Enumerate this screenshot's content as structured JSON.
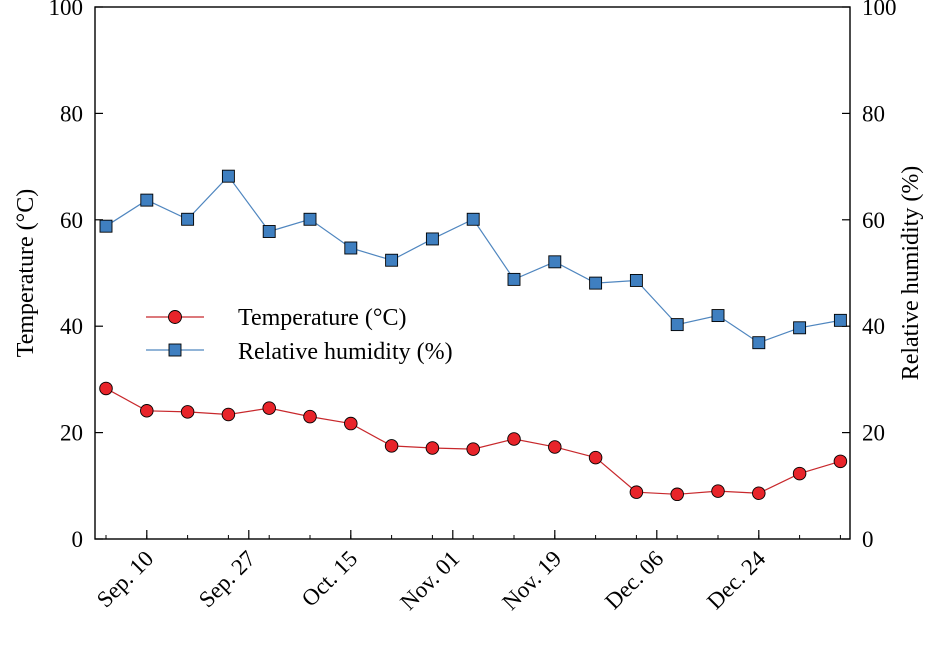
{
  "chart_data": {
    "type": "line",
    "x_tick_labels": [
      "Sep. 10",
      "Sep. 27",
      "Oct. 15",
      "Nov. 01",
      "Nov. 19",
      "Dec. 06",
      "Dec. 24"
    ],
    "ylabel": "Temperature (°C)",
    "y2label": "Relative humidity (%)",
    "ylim": [
      0,
      100
    ],
    "y2lim": [
      0,
      100
    ],
    "y_ticks": [
      0,
      20,
      40,
      60,
      80,
      100
    ],
    "legend_placement": "middle-left",
    "grid": false,
    "series": [
      {
        "name": "Temperature (°C)",
        "axis": "left",
        "marker": "circle",
        "color": "#e8242a",
        "line_color": "#c8282c",
        "values": [
          28.3,
          24.1,
          23.9,
          23.4,
          24.6,
          23.0,
          21.7,
          17.5,
          17.1,
          16.9,
          18.8,
          17.3,
          15.3,
          8.8,
          8.4,
          9.0,
          8.6,
          12.3,
          14.6
        ]
      },
      {
        "name": "Relative humidity (%)",
        "axis": "right",
        "marker": "square",
        "color": "#3f7fc0",
        "line_color": "#4f86bf",
        "values": [
          58.8,
          63.7,
          60.1,
          68.2,
          57.8,
          60.1,
          54.7,
          52.4,
          56.4,
          60.1,
          48.8,
          52.1,
          48.1,
          48.6,
          40.3,
          42.0,
          36.9,
          39.7,
          41.1
        ]
      }
    ]
  }
}
